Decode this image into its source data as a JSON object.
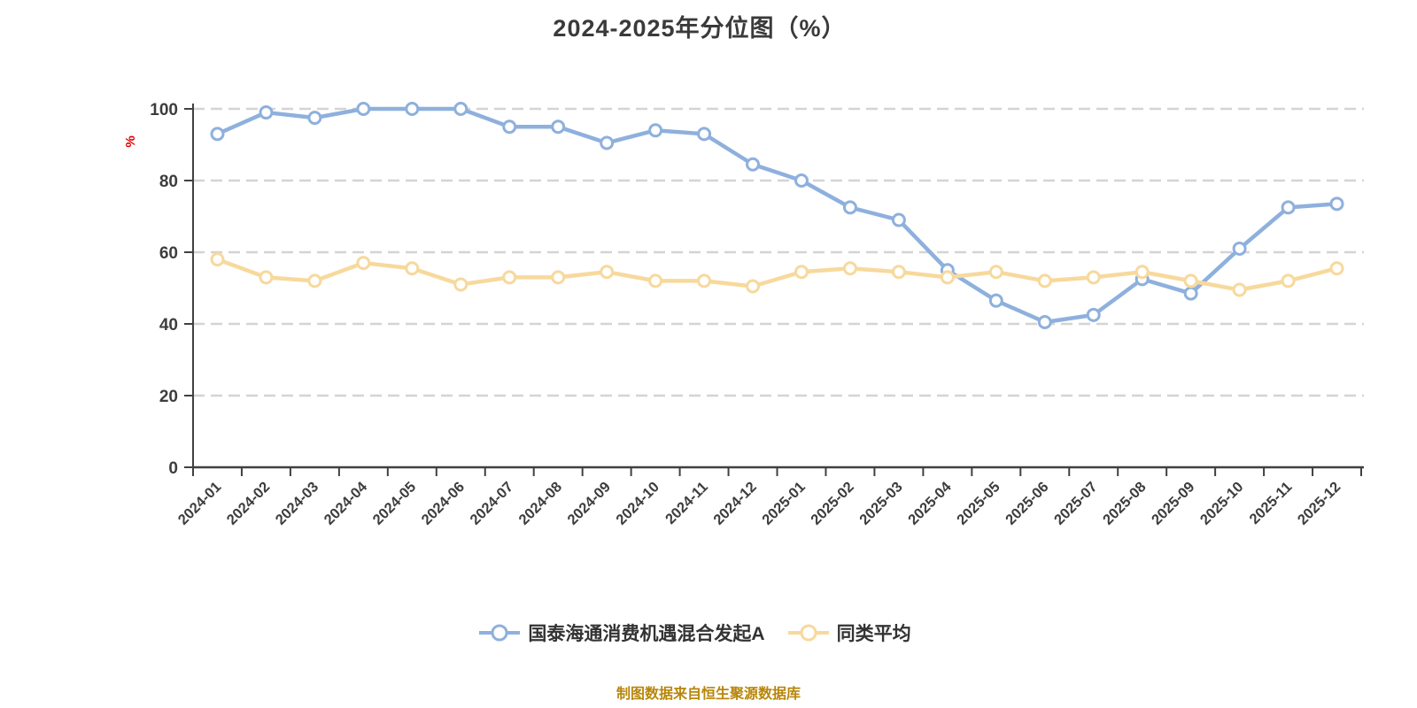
{
  "header": {
    "title": "2024-2025年分位图（%）"
  },
  "footer": {
    "caption": "制图数据来自恒生聚源数据库"
  },
  "chart_data": {
    "type": "line",
    "title": "2024-2025年分位图（%）",
    "y_unit_label": "%",
    "categories": [
      "2024-01",
      "2024-02",
      "2024-03",
      "2024-04",
      "2024-05",
      "2024-06",
      "2024-07",
      "2024-08",
      "2024-09",
      "2024-10",
      "2024-11",
      "2024-12",
      "2025-01",
      "2025-02",
      "2025-03",
      "2025-04",
      "2025-05",
      "2025-06",
      "2025-07",
      "2025-08",
      "2025-09",
      "2025-10",
      "2025-11",
      "2025-12"
    ],
    "series": [
      {
        "name": "国泰海通消费机遇混合发起A",
        "color": "#8eb0dd",
        "marker_fill": "#ffffff",
        "values": [
          93,
          99,
          97.5,
          100,
          100,
          100,
          95,
          95,
          90.5,
          94,
          93,
          84.5,
          80,
          72.5,
          69,
          55,
          46.5,
          40.5,
          42.5,
          52.5,
          48.5,
          61,
          72.5,
          73.5
        ]
      },
      {
        "name": "同类平均",
        "color": "#f7d99c",
        "marker_fill": "#ffffff",
        "values": [
          58,
          53,
          52,
          57,
          55.5,
          51,
          53,
          53,
          54.5,
          52,
          52,
          50.5,
          54.5,
          55.5,
          54.5,
          53,
          54.5,
          52,
          53,
          54.5,
          52,
          49.5,
          52,
          55.5
        ]
      }
    ],
    "ylim": [
      0,
      100
    ],
    "y_ticks": [
      0,
      20,
      40,
      60,
      80,
      100
    ],
    "grid": "horizontal-dashed",
    "legend_position": "bottom",
    "styles": {
      "axis_color": "#404040",
      "tick_label_color": "#3d3d3d",
      "grid_color": "#d4d4d4",
      "unit_label_color": "#e00000",
      "title_color": "#3a3a3a",
      "legend_text_color": "#333333",
      "caption_color": "#b8860b"
    }
  }
}
